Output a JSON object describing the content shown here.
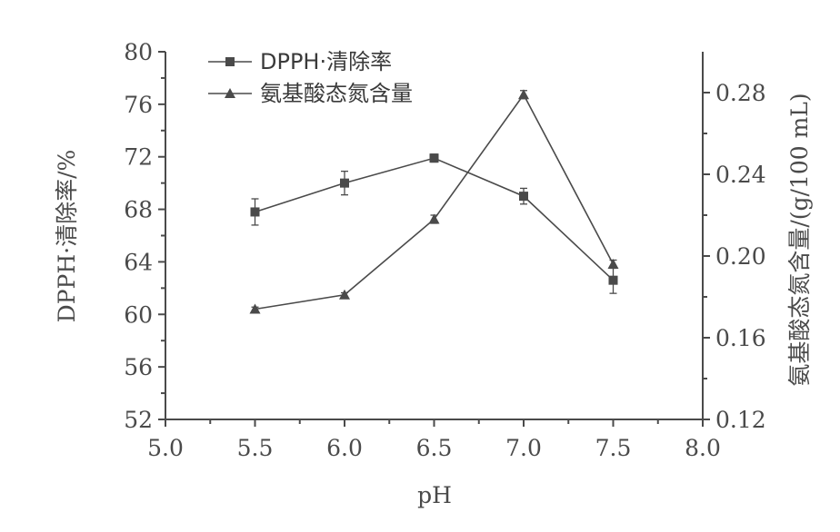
{
  "chart_data": {
    "type": "line",
    "x": [
      5.5,
      6.0,
      6.5,
      7.0,
      7.5
    ],
    "xlabel": "pH",
    "xlim": [
      5.0,
      8.0
    ],
    "xticks": [
      "5.0",
      "5.5",
      "6.0",
      "6.5",
      "7.0",
      "7.5",
      "8.0"
    ],
    "ylabel_left": "DPPH·清除率/%",
    "ylim_left": [
      52,
      80
    ],
    "yticks_left": [
      "52",
      "56",
      "60",
      "64",
      "68",
      "72",
      "76",
      "80"
    ],
    "ylabel_right": "氨基酸态氮含量/(g/100 mL)",
    "ylim_right": [
      0.12,
      0.3
    ],
    "yticks_right": [
      "0.12",
      "0.16",
      "0.20",
      "0.24",
      "0.28"
    ],
    "legend_position": "top-left",
    "grid": false,
    "series": [
      {
        "name": "DPPH·清除率",
        "axis": "left",
        "marker": "square",
        "color": "#4a4a4a",
        "values": [
          67.8,
          70.0,
          71.9,
          69.0,
          62.6
        ],
        "errors": [
          1.0,
          0.9,
          0.3,
          0.6,
          1.0
        ]
      },
      {
        "name": "氨基酸态氮含量",
        "axis": "right",
        "marker": "triangle",
        "color": "#4a4a4a",
        "values": [
          0.174,
          0.181,
          0.218,
          0.279,
          0.196
        ],
        "errors": [
          0.001,
          0.001,
          0.002,
          0.002,
          0.002
        ]
      }
    ]
  }
}
